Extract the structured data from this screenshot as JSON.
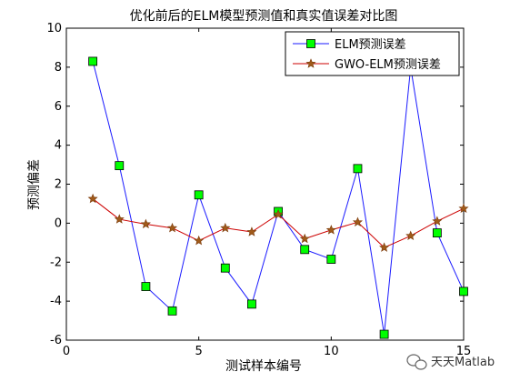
{
  "chart_data": {
    "type": "line",
    "title": "优化前后的ELM模型预测值和真实值误差对比图",
    "xlabel": "测试样本编号",
    "ylabel": "预测偏差",
    "xlim": [
      0,
      15
    ],
    "ylim": [
      -6,
      10
    ],
    "xticks": [
      0,
      5,
      10,
      15
    ],
    "yticks": [
      -6,
      -4,
      -2,
      0,
      2,
      4,
      6,
      8,
      10
    ],
    "grid": false,
    "legend_position": "top-right",
    "x": [
      1,
      2,
      3,
      4,
      5,
      6,
      7,
      8,
      9,
      10,
      11,
      12,
      13,
      14,
      15
    ],
    "series": [
      {
        "name": "ELM预测误差",
        "color": "#1a1aff",
        "marker": "square",
        "marker_fill": "#00ff00",
        "values": [
          8.3,
          2.95,
          -3.25,
          -4.5,
          1.45,
          -2.3,
          -4.15,
          0.6,
          -1.35,
          -1.85,
          2.8,
          -5.7,
          8.0,
          -0.5,
          -3.5
        ]
      },
      {
        "name": "GWO-ELM预测误差",
        "color": "#cc0000",
        "marker": "star",
        "marker_fill": "#a05a1a",
        "values": [
          1.25,
          0.2,
          -0.05,
          -0.25,
          -0.9,
          -0.25,
          -0.45,
          0.45,
          -0.8,
          -0.35,
          0.05,
          -1.25,
          -0.65,
          0.1,
          0.75
        ]
      }
    ]
  },
  "watermark": {
    "icon": "wechat-icon",
    "text": "天天Matlab"
  }
}
